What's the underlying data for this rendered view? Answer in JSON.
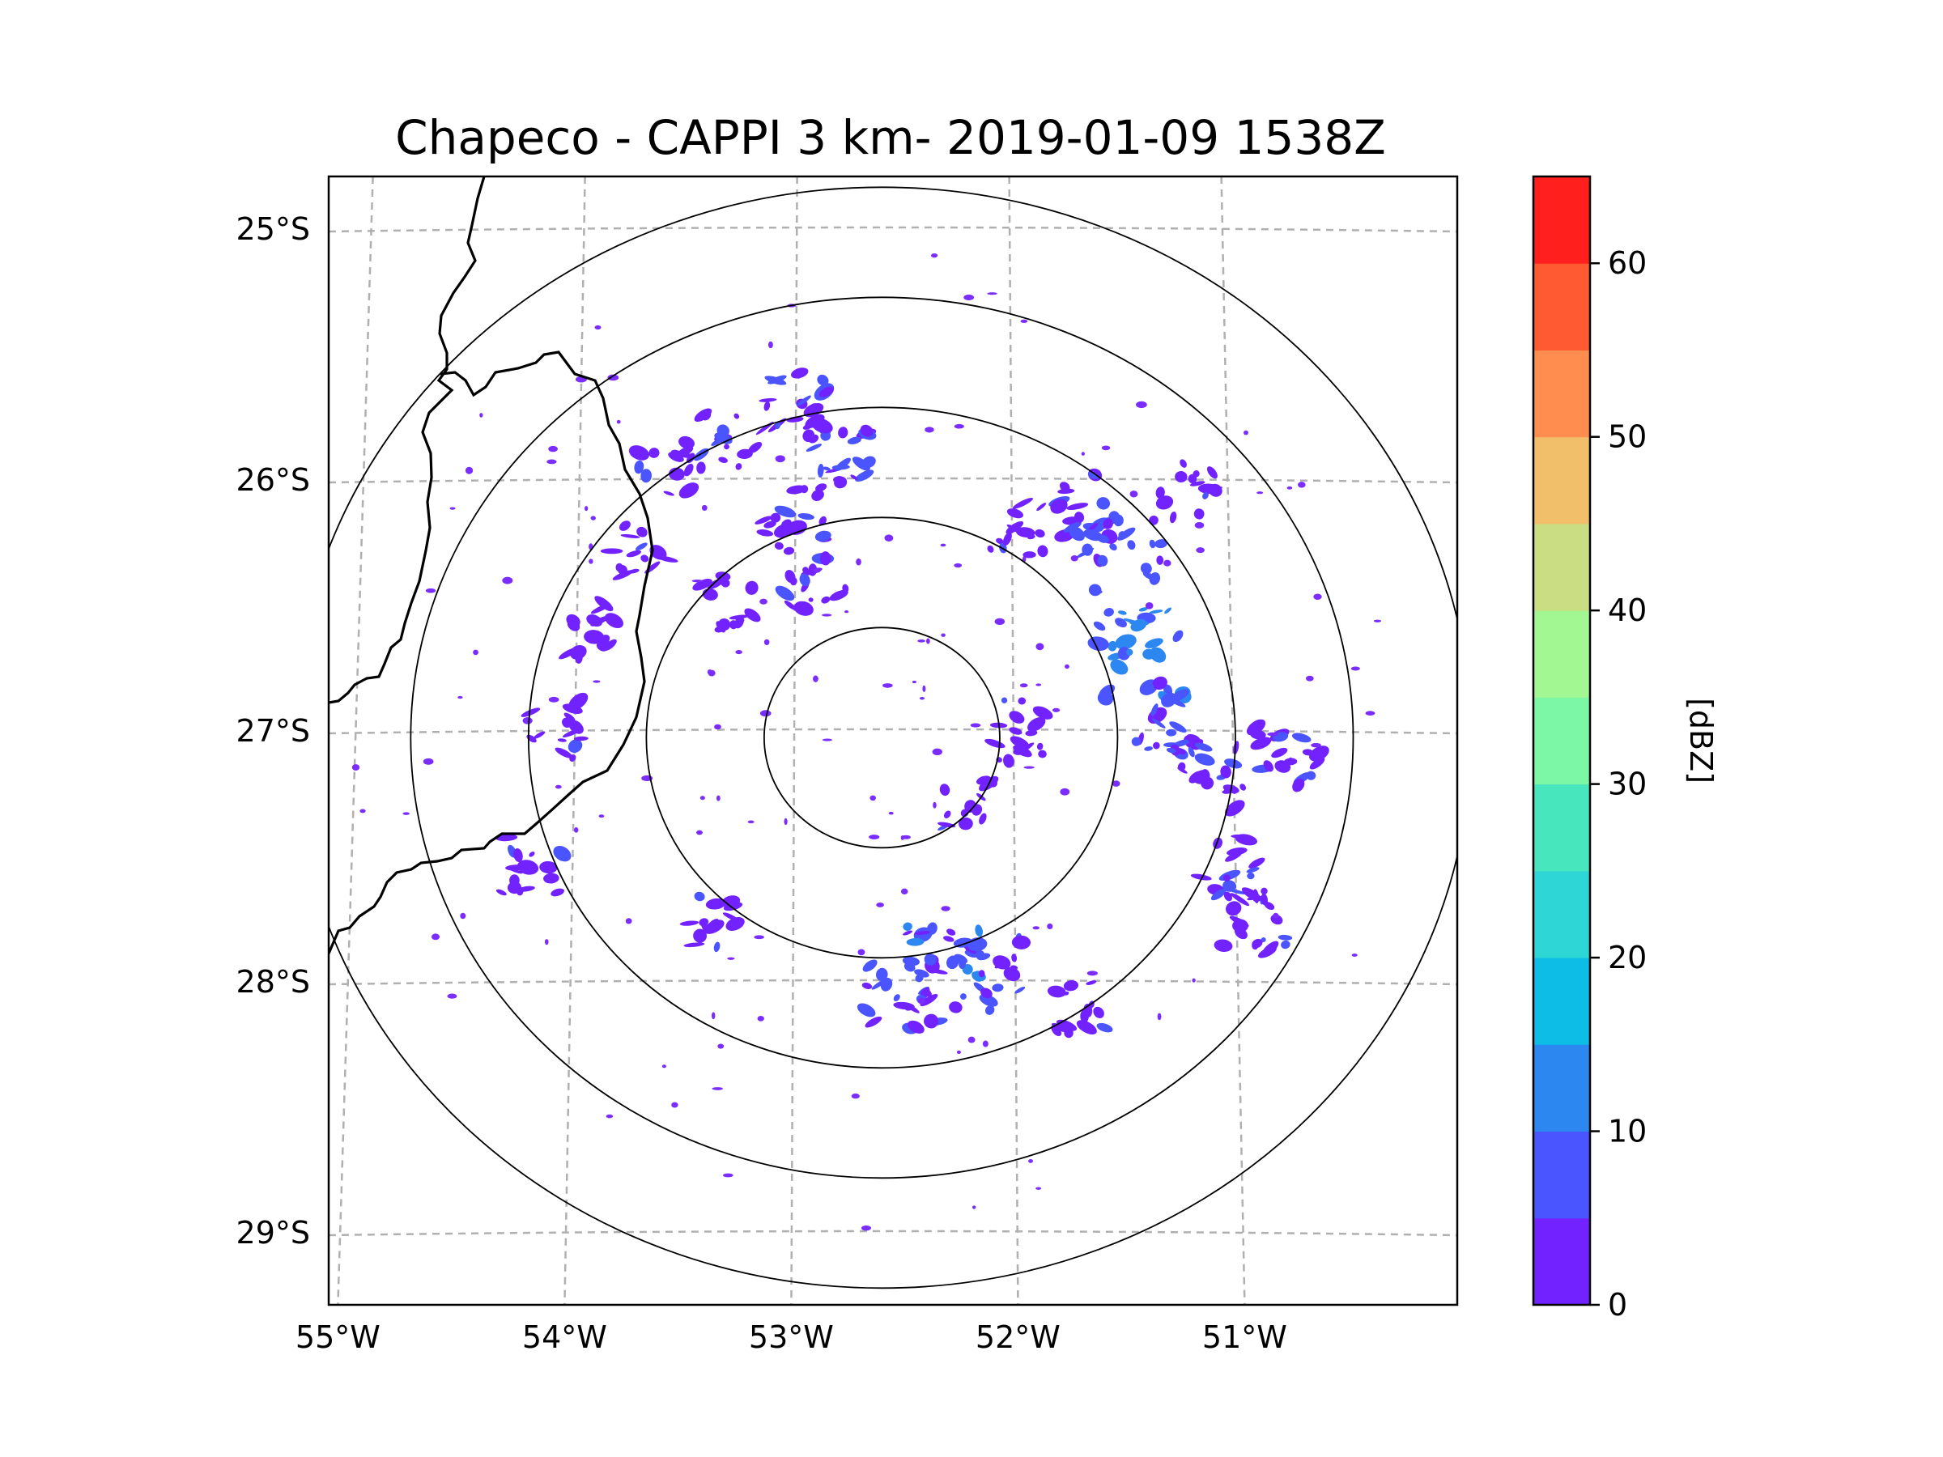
{
  "title": "Chapeco - CAPPI 3 km- 2019-01-09 1538Z",
  "map": {
    "lon_range": [
      -55.17,
      -50.03
    ],
    "lat_range": [
      -29.27,
      -24.78
    ],
    "lon_gridlines": [
      -55,
      -54,
      -53,
      -52,
      -51
    ],
    "lat_gridlines": [
      -25,
      -26,
      -27,
      -28,
      -29
    ],
    "lon_tick_labels": [
      "55°W",
      "54°W",
      "53°W",
      "52°W",
      "51°W"
    ],
    "lat_tick_labels": [
      "25°S",
      "26°S",
      "27°S",
      "28°S",
      "29°S"
    ],
    "radar_center": {
      "lon": -52.6,
      "lat": -27.03
    },
    "range_rings_km": [
      50,
      100,
      150,
      200,
      250
    ],
    "gridline_color": "#b0b0b0",
    "border_color": "#000000",
    "echo_color": "#7b2cff",
    "echo_accent_color": "#3e6bff"
  },
  "colorbar": {
    "label": "[dBZ]",
    "min": 0,
    "max": 65,
    "step": 5,
    "ticks": [
      0,
      10,
      20,
      30,
      40,
      50,
      60
    ],
    "tick_labels": [
      "0",
      "10",
      "20",
      "30",
      "40",
      "50",
      "60"
    ],
    "colors": [
      "#7222ff",
      "#4a54ff",
      "#2c88f0",
      "#0dbde6",
      "#2fd6d6",
      "#48e6bd",
      "#7bf7a6",
      "#a2f792",
      "#cbdd82",
      "#f1be6a",
      "#ff8d4f",
      "#ff5a32",
      "#ff1f1d"
    ]
  },
  "chart_data": {
    "type": "heatmap",
    "title": "Chapeco - CAPPI 3 km- 2019-01-09 1538Z",
    "xlabel": "",
    "ylabel": "",
    "variable": "reflectivity",
    "units": "dBZ",
    "value_range_observed": [
      0,
      15
    ],
    "echo_cells": [
      {
        "lon": -53.0,
        "lat": -25.7,
        "dbz": 5
      },
      {
        "lon": -52.8,
        "lat": -25.9,
        "dbz": 5
      },
      {
        "lon": -53.3,
        "lat": -25.85,
        "dbz": 2
      },
      {
        "lon": -53.0,
        "lat": -26.15,
        "dbz": 3
      },
      {
        "lon": -52.9,
        "lat": -26.4,
        "dbz": 3
      },
      {
        "lon": -53.6,
        "lat": -25.95,
        "dbz": 2
      },
      {
        "lon": -53.7,
        "lat": -26.3,
        "dbz": 2
      },
      {
        "lon": -53.3,
        "lat": -26.5,
        "dbz": 2
      },
      {
        "lon": -51.5,
        "lat": -26.3,
        "dbz": 6
      },
      {
        "lon": -51.4,
        "lat": -26.7,
        "dbz": 10
      },
      {
        "lon": -51.3,
        "lat": -26.95,
        "dbz": 5
      },
      {
        "lon": -51.1,
        "lat": -27.2,
        "dbz": 4
      },
      {
        "lon": -51.0,
        "lat": -27.55,
        "dbz": 4
      },
      {
        "lon": -50.9,
        "lat": -27.75,
        "dbz": 4
      },
      {
        "lon": -50.75,
        "lat": -27.1,
        "dbz": 4
      },
      {
        "lon": -51.65,
        "lat": -26.1,
        "dbz": 3
      },
      {
        "lon": -51.2,
        "lat": -26.05,
        "dbz": 2
      },
      {
        "lon": -52.3,
        "lat": -27.95,
        "dbz": 8
      },
      {
        "lon": -52.5,
        "lat": -28.05,
        "dbz": 6
      },
      {
        "lon": -52.1,
        "lat": -27.95,
        "dbz": 3
      },
      {
        "lon": -54.2,
        "lat": -27.55,
        "dbz": 3
      },
      {
        "lon": -53.4,
        "lat": -27.75,
        "dbz": 2
      },
      {
        "lon": -52.0,
        "lat": -27.0,
        "dbz": 3
      },
      {
        "lon": -52.2,
        "lat": -27.3,
        "dbz": 2
      },
      {
        "lon": -54.1,
        "lat": -27.0,
        "dbz": 2
      },
      {
        "lon": -53.9,
        "lat": -26.6,
        "dbz": 2
      },
      {
        "lon": -51.7,
        "lat": -28.1,
        "dbz": 2
      },
      {
        "lon": -52.0,
        "lat": -26.2,
        "dbz": 2
      }
    ]
  }
}
